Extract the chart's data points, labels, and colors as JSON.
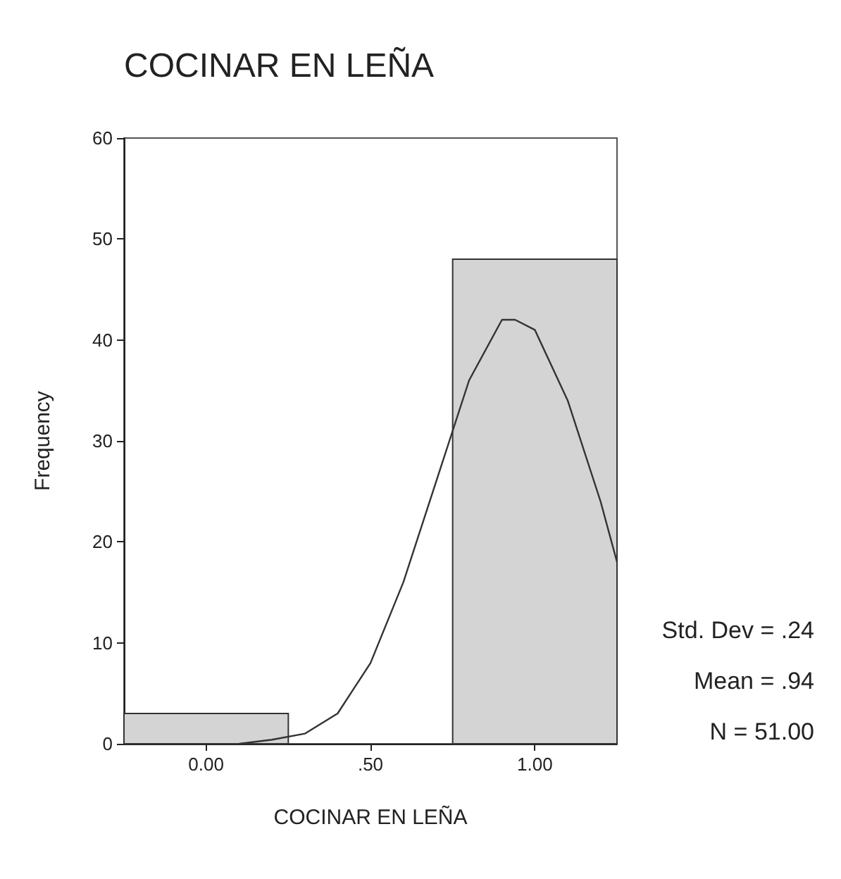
{
  "chart_data": {
    "type": "histogram",
    "title": "COCINAR EN LEÑA",
    "xlabel": "COCINAR EN LEÑA",
    "ylabel": "Frequency",
    "bins": [
      -0.25,
      0.25,
      0.75,
      1.25
    ],
    "values": [
      3,
      0,
      48
    ],
    "color": "#d4d4d4",
    "xlim": [
      -0.25,
      1.25
    ],
    "xticks": [
      {
        "value": 0,
        "label": "0.00"
      },
      {
        "value": 0.5,
        "label": ".50"
      },
      {
        "value": 1,
        "label": "1.00"
      }
    ],
    "ylim": [
      0,
      60
    ],
    "yticks": [
      0,
      10,
      20,
      30,
      40,
      50,
      60
    ],
    "grid": false,
    "series": [
      {
        "type": "line",
        "color": "#333333",
        "x": [
          0.1,
          0.2,
          0.3,
          0.4,
          0.5,
          0.6,
          0.7,
          0.8,
          0.9,
          0.94,
          1.0,
          1.1,
          1.2,
          1.25
        ],
        "values": [
          0,
          0.4,
          1,
          3,
          8,
          16,
          26,
          36,
          42,
          42,
          41,
          34,
          24,
          18
        ]
      }
    ],
    "annotations": [
      "Std. Dev = .24",
      "Mean = .94",
      "N = 51.00"
    ]
  }
}
